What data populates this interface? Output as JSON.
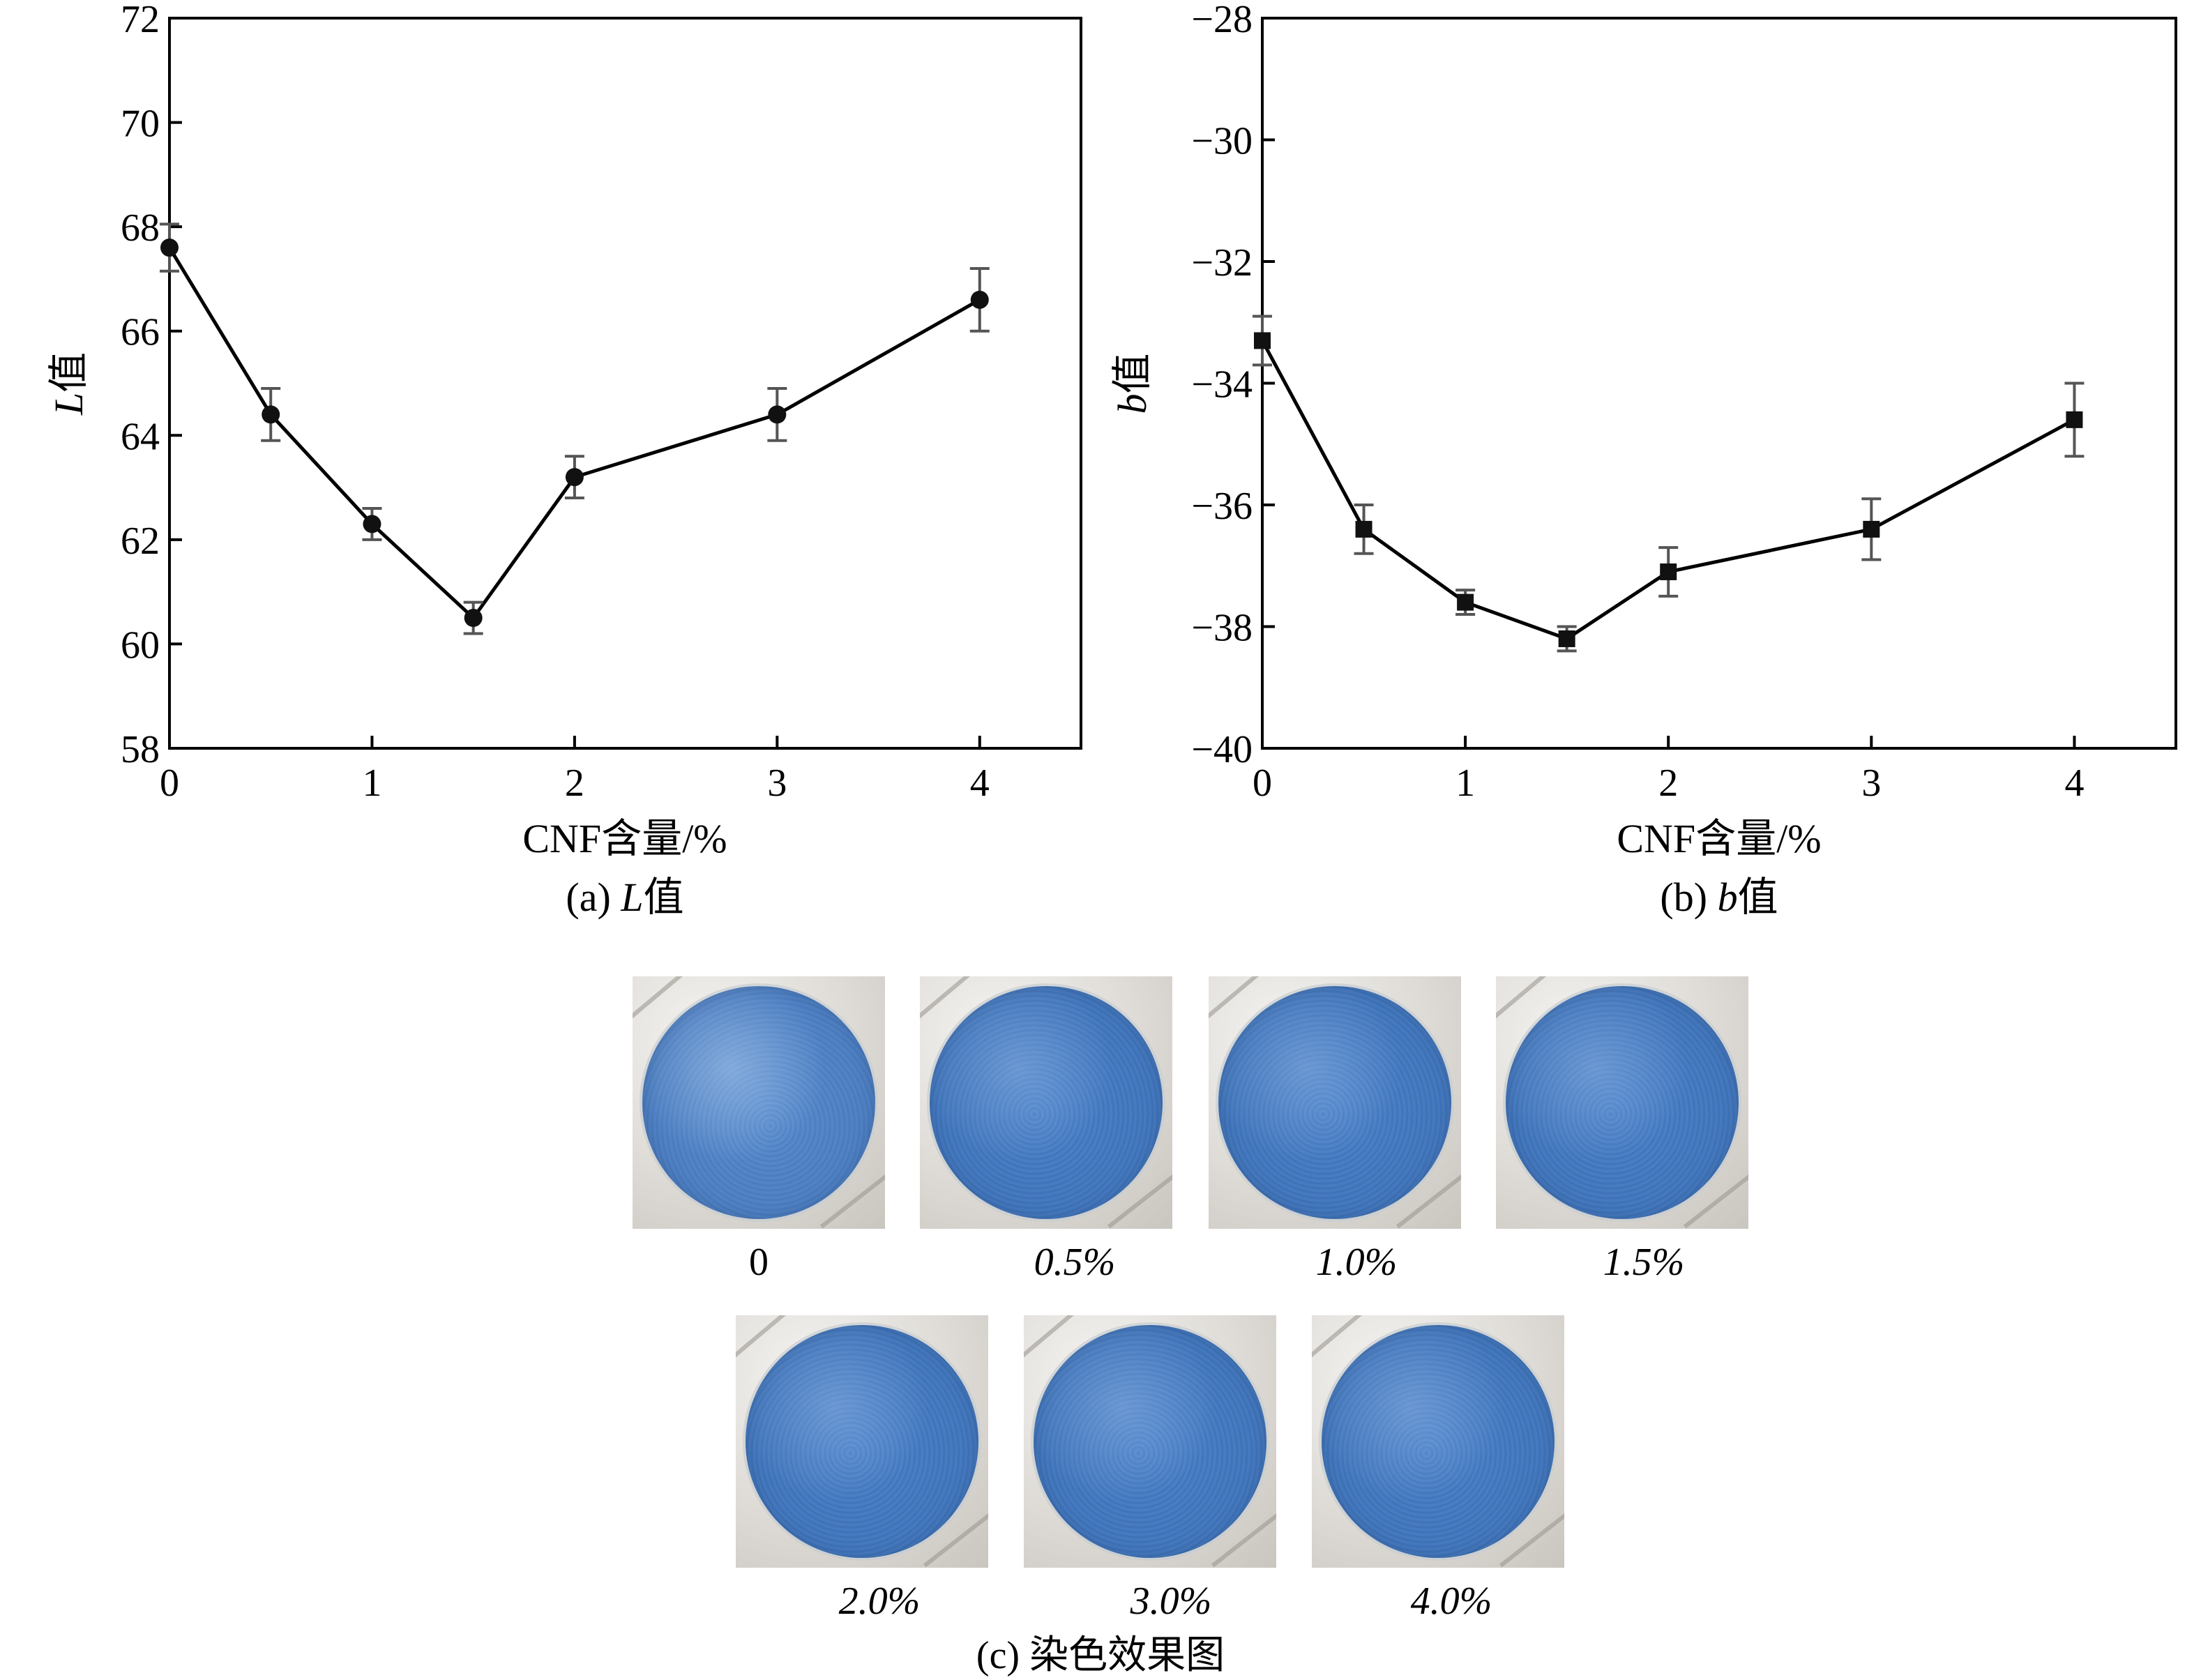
{
  "chart_data": [
    {
      "type": "line",
      "panel_caption": "(a) L值",
      "caption_prefix": "(a) ",
      "caption_var": "L",
      "caption_suffix": "值",
      "ylabel_var": "L",
      "ylabel_suffix": "值",
      "xlabel": "CNF含量/%",
      "xlim": [
        0,
        4.5
      ],
      "ylim": [
        58,
        72
      ],
      "xticks": [
        "0",
        "1",
        "2",
        "3",
        "4"
      ],
      "yticks": [
        "58",
        "60",
        "62",
        "64",
        "66",
        "68",
        "70",
        "72"
      ],
      "marker": "circle",
      "x": [
        0,
        0.5,
        1.0,
        1.5,
        2.0,
        3.0,
        4.0
      ],
      "y": [
        67.6,
        64.4,
        62.3,
        60.5,
        63.2,
        64.4,
        66.6
      ],
      "error": [
        0.45,
        0.5,
        0.3,
        0.3,
        0.4,
        0.5,
        0.6
      ]
    },
    {
      "type": "line",
      "panel_caption": "(b) b值",
      "caption_prefix": "(b) ",
      "caption_var": "b",
      "caption_suffix": "值",
      "ylabel_var": "b",
      "ylabel_suffix": "值",
      "xlabel": "CNF含量/%",
      "xlim": [
        0,
        4.5
      ],
      "ylim": [
        -40,
        -28
      ],
      "xticks": [
        "0",
        "1",
        "2",
        "3",
        "4"
      ],
      "yticks": [
        "−40",
        "−38",
        "−36",
        "−34",
        "−32",
        "−30",
        "−28"
      ],
      "marker": "square",
      "x": [
        0,
        0.5,
        1.0,
        1.5,
        2.0,
        3.0,
        4.0
      ],
      "y": [
        -33.3,
        -36.4,
        -37.6,
        -38.2,
        -37.1,
        -36.4,
        -34.6
      ],
      "error": [
        0.4,
        0.4,
        0.2,
        0.2,
        0.4,
        0.5,
        0.6
      ]
    }
  ],
  "photos": {
    "caption": "(c) 染色效果图",
    "row1": [
      "0",
      "0.5%",
      "1.0%",
      "1.5%"
    ],
    "row2": [
      "2.0%",
      "3.0%",
      "4.0%"
    ]
  }
}
